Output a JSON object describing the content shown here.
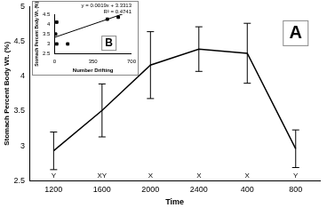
{
  "chart_data": [
    {
      "type": "line",
      "panel_label": "A",
      "x_label": "Time",
      "y_label": "Stomach Percent Body Wt. (%)",
      "categories": [
        "1200",
        "1600",
        "2000",
        "2400",
        "400",
        "800"
      ],
      "values": [
        2.93,
        3.51,
        4.16,
        4.39,
        4.33,
        2.96
      ],
      "errors": [
        0.27,
        0.38,
        0.48,
        0.32,
        0.43,
        0.27
      ],
      "group_labels": [
        "Y",
        "XY",
        "X",
        "X",
        "X",
        "Y"
      ],
      "color": "#000000",
      "ylim": [
        2.5,
        5
      ],
      "yticks": [
        2.5,
        3,
        3.5,
        4,
        4.5,
        5
      ],
      "grid": false
    },
    {
      "type": "scatter",
      "panel_label": "B",
      "x_label": "Number Drifting",
      "y_label": "Stomach Percent Body Wt. (%)",
      "x": [
        10,
        20,
        20,
        120,
        480,
        580
      ],
      "values": [
        3.5,
        4.1,
        3.0,
        3.0,
        4.25,
        4.35
      ],
      "marker": "square",
      "color": "#000000",
      "trendline": {
        "x": [
          0,
          620
        ],
        "values": [
          3.3313,
          4.5093
        ]
      },
      "annotations": [
        "y = 0.0019x + 3.3313",
        "R² = 0.4741"
      ],
      "xlim": [
        0,
        700
      ],
      "xticks": [
        0,
        350,
        700
      ],
      "ylim": [
        2.5,
        4.5
      ],
      "yticks": [
        2.5,
        3,
        3.5,
        4,
        4.5
      ],
      "grid": false
    }
  ]
}
